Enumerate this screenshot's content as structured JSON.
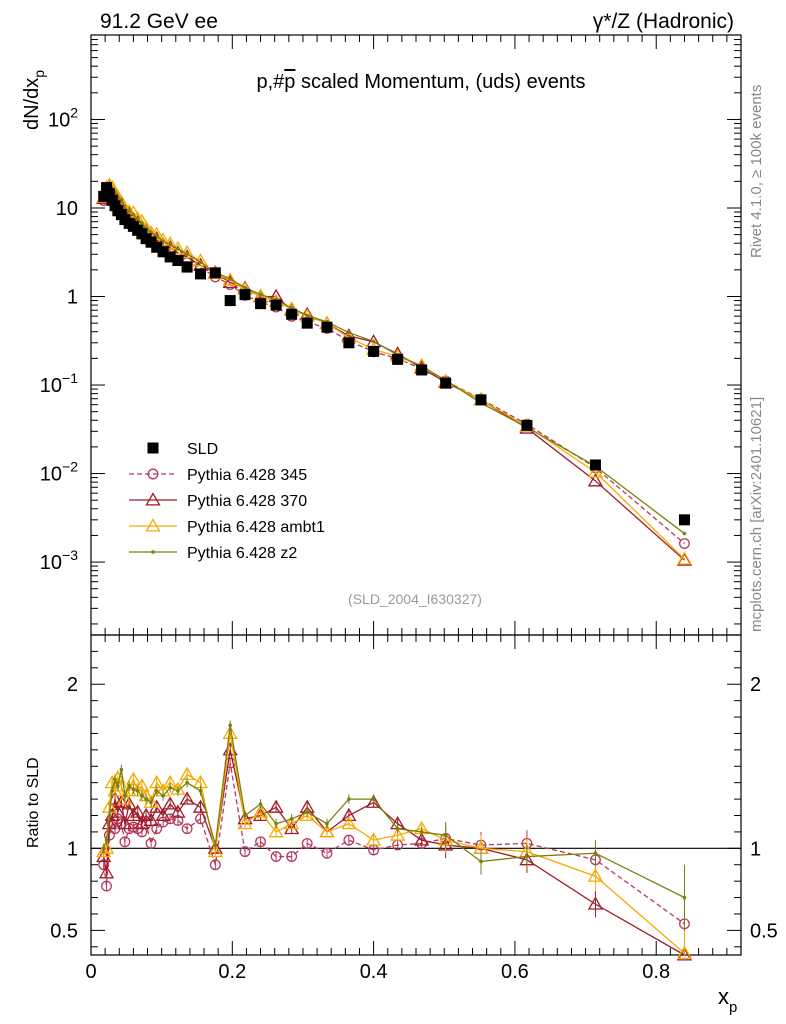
{
  "header": {
    "left": "91.2 GeV ee",
    "right_main": "γ*/Z (Hadronic)"
  },
  "side_text": {
    "top": "Rivet 4.1.0, ≥ 100k events",
    "bottom": "mcplots.cern.ch [arXiv:2401.10621]"
  },
  "chart_data": {
    "type": "scatter",
    "title": "p,#p̅ scaled Momentum, (uds) events",
    "title_parts": [
      "p,#",
      "p",
      " scaled Momentum, (uds) events"
    ],
    "analysis_tag": "(SLD_2004_I630327)",
    "xlabel": "x",
    "xlabel_sub": "p",
    "ylabel": "dN/dx",
    "ylabel_sub": "p",
    "ratio_ylabel": "Ratio to SLD",
    "xlim": [
      0,
      0.92
    ],
    "ylim_main": [
      0.00015,
      900
    ],
    "ylim_ratio": [
      0.35,
      2.3
    ],
    "x_ticks": [
      "0",
      "0.2",
      "0.4",
      "0.6",
      "0.8"
    ],
    "y_ticks_main": [
      {
        "v": 0.001,
        "base": "10",
        "exp": "−3"
      },
      {
        "v": 0.01,
        "base": "10",
        "exp": "−2"
      },
      {
        "v": 0.1,
        "base": "10",
        "exp": "−1"
      },
      {
        "v": 1,
        "base": "1",
        "exp": ""
      },
      {
        "v": 10,
        "base": "10",
        "exp": ""
      },
      {
        "v": 100,
        "base": "10",
        "exp": "2"
      }
    ],
    "y_ticks_ratio": [
      "0.5",
      "1",
      "2"
    ],
    "x": [
      0.018,
      0.022,
      0.026,
      0.03,
      0.034,
      0.038,
      0.043,
      0.048,
      0.054,
      0.06,
      0.066,
      0.072,
      0.078,
      0.085,
      0.093,
      0.102,
      0.112,
      0.123,
      0.136,
      0.155,
      0.176,
      0.197,
      0.218,
      0.24,
      0.262,
      0.284,
      0.306,
      0.334,
      0.365,
      0.4,
      0.434,
      0.468,
      0.502,
      0.552,
      0.617,
      0.714,
      0.84
    ],
    "series": [
      {
        "name": "SLD",
        "color": "#000000",
        "marker": "square",
        "values": [
          13.5,
          17.0,
          14.5,
          12.2,
          10.6,
          9.3,
          8.4,
          7.4,
          6.7,
          6.2,
          5.6,
          5.1,
          4.5,
          4.1,
          3.6,
          3.2,
          2.8,
          2.55,
          2.15,
          1.8,
          1.85,
          0.9,
          1.05,
          0.83,
          0.8,
          0.63,
          0.5,
          0.45,
          0.3,
          0.24,
          0.195,
          0.148,
          0.105,
          0.068,
          0.035,
          0.0125,
          0.003
        ]
      },
      {
        "name": "Pythia 6.428 345",
        "color": "#b5395a",
        "marker": "circle",
        "dashed": true,
        "ratio": [
          0.9,
          0.77,
          1.08,
          1.15,
          1.12,
          1.18,
          1.15,
          1.04,
          1.12,
          1.13,
          1.12,
          1.1,
          1.15,
          1.03,
          1.12,
          1.16,
          1.18,
          1.17,
          1.12,
          1.18,
          0.9,
          1.52,
          0.98,
          1.04,
          0.95,
          0.95,
          1.03,
          0.97,
          1.05,
          0.99,
          1.02,
          1.03,
          1.06,
          1.02,
          1.03,
          0.93,
          0.54
        ]
      },
      {
        "name": "Pythia 6.428 370",
        "color": "#a01a2a",
        "marker": "triangle-open",
        "ratio": [
          0.95,
          0.85,
          1.15,
          1.2,
          1.3,
          1.22,
          1.28,
          1.15,
          1.27,
          1.2,
          1.22,
          1.15,
          1.2,
          1.17,
          1.25,
          1.2,
          1.27,
          1.22,
          1.3,
          1.25,
          1.0,
          1.6,
          1.18,
          1.2,
          1.25,
          1.12,
          1.25,
          1.1,
          1.2,
          1.28,
          1.15,
          1.05,
          1.02,
          1.0,
          0.93,
          0.66,
          0.35
        ]
      },
      {
        "name": "Pythia 6.428 ambt1",
        "color": "#f5aa00",
        "marker": "triangle-open",
        "ratio": [
          0.98,
          1.0,
          1.25,
          1.4,
          1.35,
          1.43,
          1.38,
          1.3,
          1.35,
          1.42,
          1.35,
          1.38,
          1.32,
          1.28,
          1.4,
          1.35,
          1.4,
          1.36,
          1.45,
          1.4,
          0.98,
          1.7,
          1.15,
          1.22,
          1.1,
          1.15,
          1.2,
          1.1,
          1.15,
          1.05,
          1.08,
          1.12,
          1.05,
          1.0,
          0.98,
          0.83,
          0.36
        ]
      },
      {
        "name": "Pythia 6.428 z2",
        "color": "#7a7f10",
        "marker": "dot",
        "ratio": [
          1.0,
          1.05,
          1.2,
          1.35,
          1.42,
          1.38,
          1.48,
          1.32,
          1.38,
          1.36,
          1.35,
          1.32,
          1.3,
          1.28,
          1.35,
          1.32,
          1.37,
          1.35,
          1.4,
          1.35,
          1.02,
          1.75,
          1.2,
          1.27,
          1.15,
          1.18,
          1.22,
          1.15,
          1.3,
          1.3,
          1.12,
          1.1,
          1.08,
          0.92,
          0.95,
          0.97,
          0.7
        ]
      }
    ]
  }
}
